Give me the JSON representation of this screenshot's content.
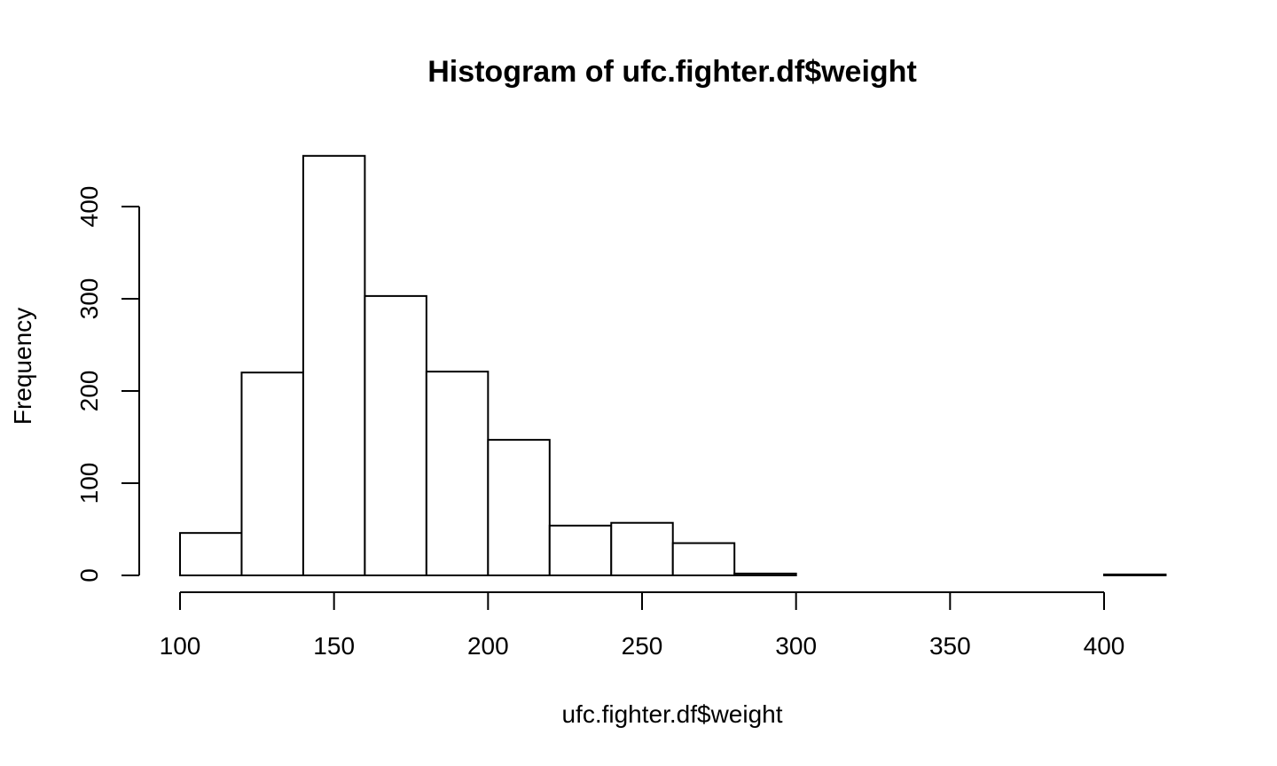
{
  "chart_data": {
    "type": "bar",
    "title": "Histogram of ufc.fighter.df$weight",
    "xlabel": "ufc.fighter.df$weight",
    "ylabel": "Frequency",
    "bins": [
      {
        "from": 100,
        "to": 120,
        "count": 46
      },
      {
        "from": 120,
        "to": 140,
        "count": 220
      },
      {
        "from": 140,
        "to": 160,
        "count": 455
      },
      {
        "from": 160,
        "to": 180,
        "count": 303
      },
      {
        "from": 180,
        "to": 200,
        "count": 221
      },
      {
        "from": 200,
        "to": 220,
        "count": 147
      },
      {
        "from": 220,
        "to": 240,
        "count": 54
      },
      {
        "from": 240,
        "to": 260,
        "count": 57
      },
      {
        "from": 260,
        "to": 280,
        "count": 35
      },
      {
        "from": 280,
        "to": 300,
        "count": 2
      },
      {
        "from": 300,
        "to": 320,
        "count": 0
      },
      {
        "from": 320,
        "to": 340,
        "count": 0
      },
      {
        "from": 340,
        "to": 360,
        "count": 0
      },
      {
        "from": 360,
        "to": 380,
        "count": 0
      },
      {
        "from": 380,
        "to": 400,
        "count": 0
      },
      {
        "from": 400,
        "to": 420,
        "count": 1
      }
    ],
    "xlim": [
      100,
      420
    ],
    "ylim": [
      0,
      455
    ],
    "x_ticks": [
      100,
      150,
      200,
      250,
      300,
      350,
      400
    ],
    "x_tick_labels": [
      "100",
      "150",
      "200",
      "250",
      "300",
      "350",
      "400"
    ],
    "y_ticks": [
      0,
      100,
      200,
      300,
      400
    ],
    "y_tick_labels": [
      "0",
      "100",
      "200",
      "300",
      "400"
    ],
    "grid": false,
    "legend": "none"
  }
}
